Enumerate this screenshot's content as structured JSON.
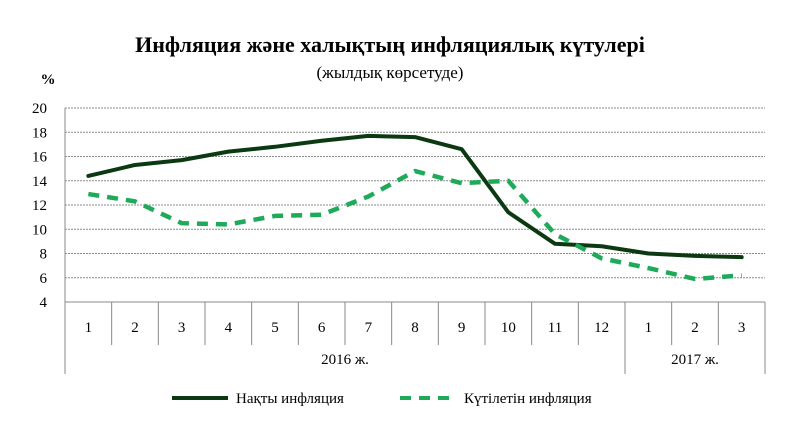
{
  "chart_data": {
    "type": "line",
    "title": "Инфляция және халықтың инфляциялық күтулері",
    "subtitle": "(жылдық көрсетуде)",
    "ylabel": "%",
    "ylim": [
      4,
      20
    ],
    "yticks": [
      4,
      6,
      8,
      10,
      12,
      14,
      16,
      18,
      20
    ],
    "grid": true,
    "categories": [
      "1",
      "2",
      "3",
      "4",
      "5",
      "6",
      "7",
      "8",
      "9",
      "10",
      "11",
      "12",
      "1",
      "2",
      "3"
    ],
    "year_groups": [
      {
        "label": "2016 ж.",
        "count": 12
      },
      {
        "label": "2017 ж.",
        "count": 3
      }
    ],
    "legend_position": "bottom",
    "series": [
      {
        "name": "Нақты инфляция",
        "style": "solid",
        "color": "#0b3a12",
        "values": [
          14.4,
          15.3,
          15.7,
          16.4,
          16.8,
          17.3,
          17.7,
          17.6,
          16.6,
          11.4,
          8.8,
          8.6,
          8.0,
          7.8,
          7.7
        ]
      },
      {
        "name": "Күтілетін инфляция",
        "style": "dashed",
        "color": "#1faa5a",
        "values": [
          12.9,
          12.3,
          10.5,
          10.4,
          11.1,
          11.2,
          12.7,
          14.8,
          13.8,
          14.0,
          9.6,
          7.6,
          6.8,
          5.9,
          6.2
        ]
      }
    ]
  }
}
